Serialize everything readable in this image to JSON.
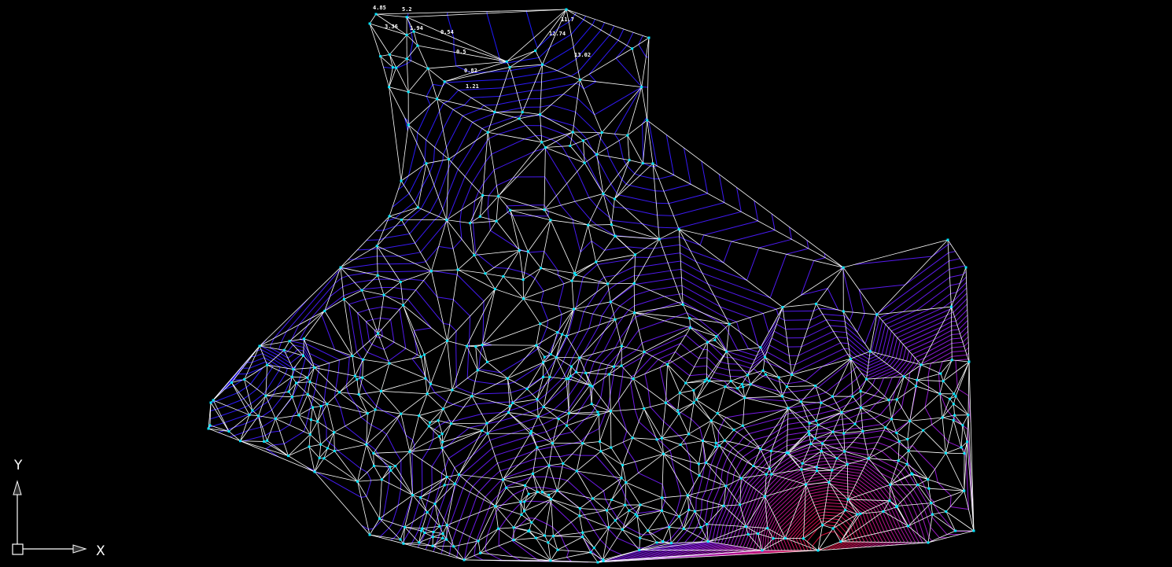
{
  "viewport": {
    "background": "#000000",
    "tin_edge_color": "#ffffff",
    "point_color": "#00e5ff",
    "contour_colors": {
      "low": "#1a1aff",
      "mid": "#8a1ae0",
      "high": "#e0103a"
    }
  },
  "elevation_labels": [
    "4.85",
    "5.2",
    "3.36",
    "1.94",
    "0.54",
    "0.5",
    "0.82",
    "1.21",
    "11.7",
    "12.74",
    "13.02"
  ],
  "ucs_icon": {
    "x_label": "X",
    "y_label": "Y"
  }
}
